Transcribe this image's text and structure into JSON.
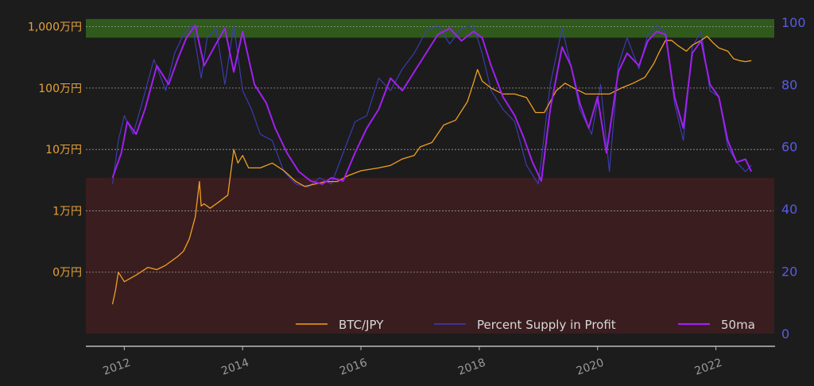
{
  "chart_data": {
    "type": "line",
    "title": "",
    "xlabel": "",
    "ylabel_left": "",
    "ylabel_right": "",
    "left_axis": {
      "scale": "log",
      "tick_values": [
        1000,
        10000,
        100000,
        1000000,
        10000000
      ],
      "tick_labels": [
        "0万円",
        "1万円",
        "10万円",
        "100万円",
        "1,000万円"
      ],
      "range": [
        100,
        15000000
      ],
      "color": "#e8a23a"
    },
    "right_axis": {
      "scale": "linear",
      "ticks": [
        0,
        20,
        40,
        60,
        80,
        100
      ],
      "range": [
        0,
        102
      ],
      "color": "#5a5ae6"
    },
    "x_axis": {
      "ticks": [
        2012,
        2014,
        2016,
        2018,
        2020,
        2022
      ],
      "tick_labels": [
        "2012",
        "2014",
        "2016",
        "2018",
        "2020",
        "2022"
      ],
      "range": [
        2011.35,
        2023.0
      ]
    },
    "bands": [
      {
        "axis": "right",
        "from": 95,
        "to": 101,
        "color": "#2f5a1c"
      },
      {
        "axis": "right",
        "from": 0,
        "to": 50,
        "color": "#3a1d1f"
      }
    ],
    "grid": true,
    "legend": {
      "placement": "bottom-right"
    },
    "series": [
      {
        "name": "BTC/JPY",
        "axis": "left",
        "color": "#f0a020",
        "x": [
          2011.8,
          2011.85,
          2011.9,
          2012.0,
          2012.2,
          2012.4,
          2012.55,
          2012.7,
          2012.9,
          2013.0,
          2013.1,
          2013.2,
          2013.27,
          2013.3,
          2013.35,
          2013.45,
          2013.6,
          2013.75,
          2013.85,
          2013.92,
          2014.0,
          2014.1,
          2014.3,
          2014.5,
          2014.7,
          2014.9,
          2015.05,
          2015.2,
          2015.4,
          2015.6,
          2015.8,
          2016.0,
          2016.3,
          2016.5,
          2016.7,
          2016.9,
          2017.0,
          2017.2,
          2017.4,
          2017.6,
          2017.8,
          2017.9,
          2017.97,
          2018.05,
          2018.2,
          2018.4,
          2018.6,
          2018.8,
          2018.95,
          2019.1,
          2019.3,
          2019.45,
          2019.6,
          2019.8,
          2020.0,
          2020.2,
          2020.4,
          2020.6,
          2020.8,
          2020.95,
          2021.05,
          2021.15,
          2021.25,
          2021.35,
          2021.5,
          2021.6,
          2021.75,
          2021.85,
          2021.95,
          2022.05,
          2022.2,
          2022.3,
          2022.4,
          2022.5,
          2022.6
        ],
        "values": [
          300,
          500,
          1000,
          700,
          900,
          1200,
          1100,
          1300,
          1800,
          2200,
          3500,
          8000,
          30000,
          12000,
          13000,
          11000,
          14000,
          18000,
          100000,
          60000,
          80000,
          50000,
          50000,
          60000,
          45000,
          30000,
          25000,
          27000,
          30000,
          30000,
          38000,
          45000,
          50000,
          55000,
          70000,
          80000,
          110000,
          130000,
          250000,
          300000,
          600000,
          1200000,
          2000000,
          1300000,
          1000000,
          800000,
          800000,
          700000,
          400000,
          400000,
          900000,
          1200000,
          1000000,
          800000,
          800000,
          800000,
          1000000,
          1200000,
          1500000,
          2500000,
          4000000,
          6000000,
          6000000,
          5000000,
          4000000,
          5000000,
          6000000,
          7000000,
          5500000,
          4500000,
          4000000,
          3000000,
          2800000,
          2700000,
          2800000
        ]
      },
      {
        "name": "Percent Supply in Profit",
        "axis": "right",
        "color": "#3d3dbb",
        "x": [
          2011.8,
          2011.9,
          2012.0,
          2012.15,
          2012.3,
          2012.5,
          2012.7,
          2012.85,
          2013.0,
          2013.15,
          2013.3,
          2013.4,
          2013.55,
          2013.7,
          2013.85,
          2014.0,
          2014.15,
          2014.3,
          2014.5,
          2014.7,
          2014.9,
          2015.1,
          2015.3,
          2015.5,
          2015.7,
          2015.9,
          2016.1,
          2016.3,
          2016.5,
          2016.7,
          2016.9,
          2017.1,
          2017.3,
          2017.5,
          2017.7,
          2017.9,
          2018.05,
          2018.2,
          2018.4,
          2018.6,
          2018.8,
          2019.0,
          2019.2,
          2019.4,
          2019.55,
          2019.7,
          2019.9,
          2020.05,
          2020.2,
          2020.35,
          2020.5,
          2020.7,
          2020.85,
          2021.0,
          2021.15,
          2021.3,
          2021.45,
          2021.6,
          2021.75,
          2021.9,
          2022.05,
          2022.2,
          2022.35,
          2022.5,
          2022.6
        ],
        "values": [
          48,
          62,
          70,
          64,
          74,
          88,
          78,
          90,
          96,
          99,
          82,
          95,
          98,
          80,
          99,
          78,
          72,
          64,
          62,
          52,
          48,
          47,
          50,
          48,
          58,
          68,
          70,
          82,
          78,
          85,
          90,
          97,
          99,
          93,
          98,
          99,
          90,
          78,
          72,
          68,
          54,
          48,
          80,
          98,
          86,
          72,
          64,
          80,
          52,
          86,
          95,
          85,
          96,
          99,
          97,
          74,
          62,
          92,
          97,
          78,
          76,
          60,
          55,
          52,
          54
        ]
      },
      {
        "name": "50ma",
        "axis": "right",
        "color": "#a020f0",
        "x": [
          2011.8,
          2011.95,
          2012.05,
          2012.2,
          2012.35,
          2012.55,
          2012.75,
          2012.9,
          2013.05,
          2013.2,
          2013.35,
          2013.55,
          2013.7,
          2013.85,
          2014.0,
          2014.2,
          2014.4,
          2014.55,
          2014.75,
          2014.95,
          2015.15,
          2015.35,
          2015.5,
          2015.7,
          2015.9,
          2016.1,
          2016.3,
          2016.5,
          2016.7,
          2016.9,
          2017.1,
          2017.3,
          2017.5,
          2017.7,
          2017.9,
          2018.05,
          2018.2,
          2018.4,
          2018.6,
          2018.75,
          2018.9,
          2019.05,
          2019.2,
          2019.4,
          2019.55,
          2019.7,
          2019.85,
          2020.0,
          2020.15,
          2020.35,
          2020.5,
          2020.7,
          2020.85,
          2021.0,
          2021.15,
          2021.3,
          2021.45,
          2021.6,
          2021.75,
          2021.9,
          2022.05,
          2022.2,
          2022.35,
          2022.5,
          2022.6
        ],
        "values": [
          50,
          58,
          68,
          64,
          72,
          86,
          80,
          88,
          95,
          99,
          86,
          93,
          98,
          84,
          97,
          80,
          74,
          66,
          58,
          52,
          49,
          48,
          50,
          49,
          58,
          66,
          72,
          82,
          78,
          84,
          90,
          96,
          98,
          94,
          97,
          95,
          86,
          76,
          70,
          63,
          55,
          49,
          72,
          92,
          86,
          74,
          66,
          76,
          58,
          84,
          90,
          86,
          94,
          97,
          96,
          76,
          66,
          90,
          94,
          80,
          76,
          62,
          55,
          56,
          52
        ]
      }
    ]
  }
}
